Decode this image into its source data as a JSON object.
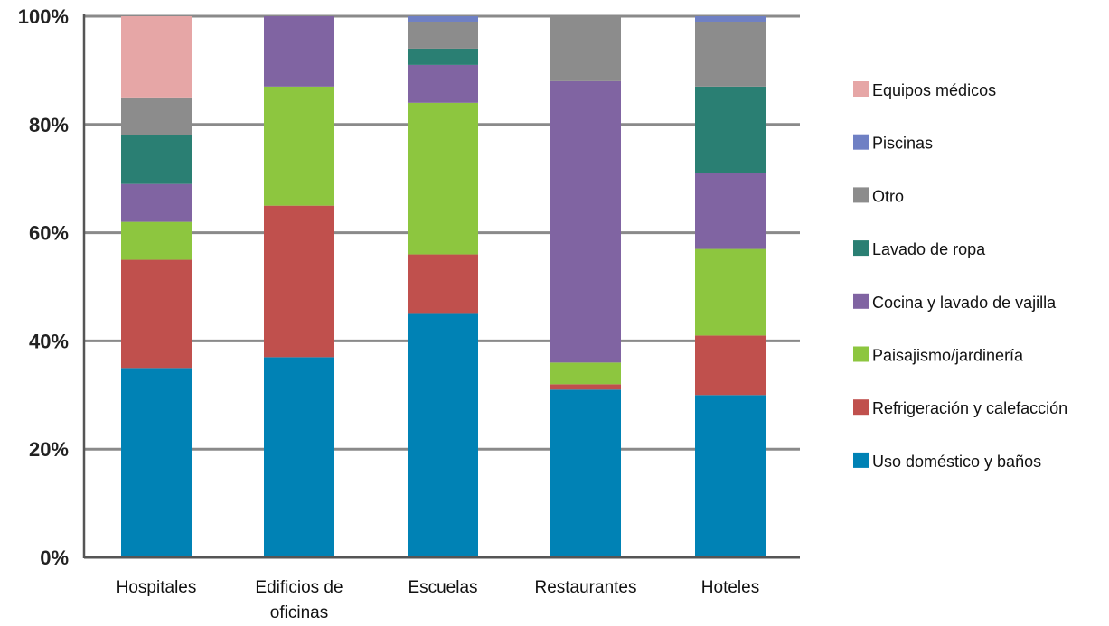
{
  "chart_data": {
    "type": "bar",
    "stacked": true,
    "categories": [
      [
        "Hospitales"
      ],
      [
        "Edificios de",
        "oficinas"
      ],
      [
        "Escuelas"
      ],
      [
        "Restaurantes"
      ],
      [
        "Hoteles"
      ]
    ],
    "series": [
      {
        "name": "Uso doméstico y baños",
        "color": "#0082b5",
        "values": [
          35,
          37,
          45,
          31,
          30
        ]
      },
      {
        "name": "Refrigeración y calefacción",
        "color": "#c0504d",
        "values": [
          20,
          28,
          11,
          1,
          11
        ]
      },
      {
        "name": "Paisajismo/jardinería",
        "color": "#8dc63f",
        "values": [
          7,
          22,
          28,
          4,
          16
        ]
      },
      {
        "name": "Cocina y lavado de vajilla",
        "color": "#8064a2",
        "values": [
          7,
          13,
          7,
          52,
          14
        ]
      },
      {
        "name": "Lavado de ropa",
        "color": "#2a7f73",
        "values": [
          9,
          0,
          3,
          0,
          16
        ]
      },
      {
        "name": "Otro",
        "color": "#8c8c8c",
        "values": [
          7,
          0,
          5,
          12,
          12
        ]
      },
      {
        "name": "Piscinas",
        "color": "#6f80c4",
        "values": [
          0,
          0,
          1,
          0,
          1
        ]
      },
      {
        "name": "Equipos médicos",
        "color": "#e6a6a6",
        "values": [
          15,
          0,
          0,
          0,
          0
        ]
      }
    ],
    "legend_order": [
      "Equipos médicos",
      "Piscinas",
      "Otro",
      "Lavado de ropa",
      "Cocina y lavado de vajilla",
      "Paisajismo/jardinería",
      "Refrigeración y calefacción",
      "Uso doméstico y baños"
    ],
    "ylim": [
      0,
      100
    ],
    "yticks": [
      "0%",
      "20%",
      "40%",
      "60%",
      "80%",
      "100%"
    ],
    "grid": true,
    "legend_position": "right",
    "title": "",
    "xlabel": "",
    "ylabel": ""
  }
}
